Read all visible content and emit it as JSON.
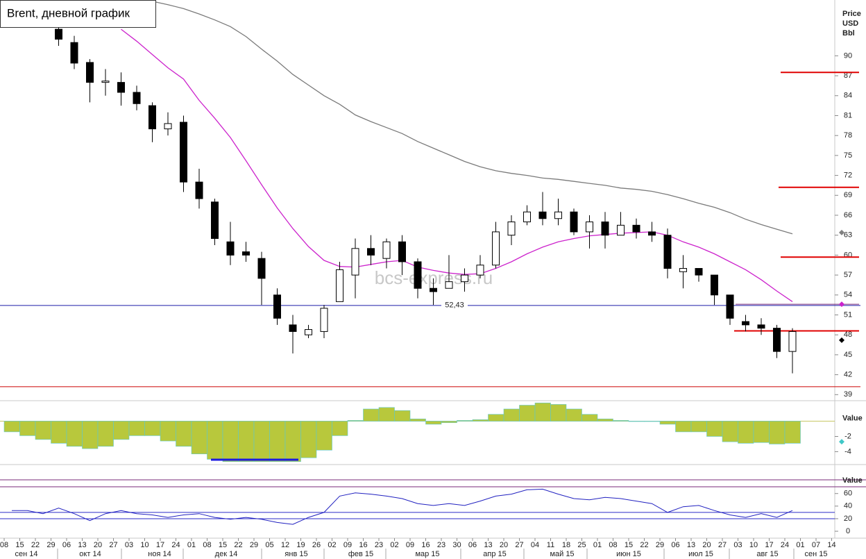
{
  "chart_data": [
    {
      "type": "candlestick",
      "title": "Brent, дневной график",
      "y_label": [
        "Price",
        "USD",
        "Bbl"
      ],
      "watermark": "bcs-express.ru",
      "categories": [
        "08",
        "15",
        "22",
        "29",
        "06",
        "13",
        "20",
        "27",
        "03",
        "10",
        "17",
        "24",
        "01",
        "08",
        "15",
        "22",
        "29",
        "05",
        "12",
        "19",
        "26",
        "02",
        "09",
        "16",
        "23",
        "02",
        "09",
        "16",
        "23",
        "30",
        "06",
        "13",
        "20",
        "27",
        "04",
        "11",
        "18",
        "25",
        "01",
        "08",
        "15",
        "22",
        "29",
        "06",
        "13",
        "20",
        "27",
        "03",
        "10",
        "17",
        "24",
        "01",
        "07",
        "14"
      ],
      "months": [
        "сен 14",
        "окт 14",
        "ноя 14",
        "дек 14",
        "янв 15",
        "фев 15",
        "мар 15",
        "апр 15",
        "май 15",
        "июн 15",
        "июл 15",
        "авг 15",
        "сен 15"
      ],
      "open": [
        null,
        null,
        null,
        94,
        92,
        89,
        86,
        86,
        84.5,
        82.5,
        79,
        80,
        71,
        68,
        62,
        60.5,
        59.5,
        54,
        49.5,
        48,
        48.5,
        53,
        57,
        61,
        59.5,
        62,
        59,
        55,
        55,
        56,
        57,
        58.5,
        63,
        65,
        66.5,
        65.5,
        66.5,
        63.5,
        65,
        63,
        64.5,
        63.5,
        63,
        57.5,
        58,
        57,
        54,
        50,
        49.5,
        49,
        45.5,
        null,
        null,
        null
      ],
      "high": [
        null,
        null,
        null,
        95,
        93,
        89.5,
        88,
        87.5,
        85.5,
        83,
        81.5,
        81,
        73,
        68.5,
        65,
        62,
        60.5,
        55,
        51,
        49.5,
        52.5,
        59,
        62.5,
        63,
        62.5,
        63,
        59.5,
        56.5,
        60,
        58,
        60,
        65,
        66,
        67.5,
        69.5,
        68.5,
        67,
        66,
        66.5,
        66.5,
        65.5,
        65,
        64,
        60,
        58,
        57,
        54,
        51,
        50.5,
        49.5,
        49,
        null,
        null,
        null
      ],
      "low": [
        null,
        null,
        null,
        91.5,
        88,
        83,
        84,
        82.5,
        81.8,
        77,
        78,
        69.5,
        67,
        61.5,
        58.5,
        59,
        52.5,
        49.5,
        45.2,
        47.5,
        47.5,
        53,
        53.5,
        58.5,
        58,
        57,
        53.5,
        52.5,
        55,
        54.5,
        56.5,
        58,
        61.5,
        64.5,
        64.5,
        64.5,
        63,
        61,
        61,
        63,
        62.5,
        62,
        56.5,
        55,
        56,
        52.5,
        49.5,
        48.5,
        48,
        44.5,
        42.2,
        null,
        null,
        null
      ],
      "close": [
        null,
        null,
        null,
        92.5,
        88.9,
        86,
        86.2,
        84.5,
        82.8,
        79,
        79.8,
        71,
        68.5,
        62.5,
        60,
        60,
        56.5,
        50.5,
        48.5,
        48.8,
        52,
        57.8,
        61,
        60,
        62,
        59,
        55,
        54.5,
        56,
        57,
        58.5,
        63.5,
        65,
        66.5,
        65.5,
        66.5,
        63.5,
        65,
        63,
        64.5,
        63.5,
        63,
        58,
        58,
        57,
        54,
        50.5,
        49.5,
        49,
        45.5,
        48.5,
        null,
        null,
        null
      ],
      "up_color": "#ffffff",
      "down_color": "#000000",
      "moving_averages": [
        {
          "color": "#7a7a7a",
          "values": [
            null,
            null,
            null,
            null,
            null,
            null,
            null,
            null,
            null,
            98.2,
            97.7,
            97.1,
            96.3,
            95.4,
            94.4,
            92.9,
            91.0,
            89.2,
            87.2,
            85.6,
            84.0,
            82.7,
            81.1,
            80.1,
            79.2,
            78.3,
            77.1,
            76.1,
            75.1,
            74.1,
            73.3,
            72.7,
            72.3,
            72.0,
            71.6,
            71.4,
            71.1,
            70.8,
            70.5,
            70.1,
            69.9,
            69.6,
            69.1,
            68.5,
            67.8,
            67.2,
            66.4,
            65.4,
            64.6,
            63.9,
            63.2,
            null,
            null,
            null
          ]
        },
        {
          "color": "#cc22cc",
          "values": [
            null,
            null,
            null,
            null,
            null,
            null,
            null,
            94.0,
            92.2,
            90.2,
            88.2,
            86.5,
            83.3,
            80.6,
            77.7,
            74.2,
            70.6,
            67.1,
            64.0,
            61.3,
            59.2,
            58.3,
            58.2,
            58.6,
            59.0,
            59.2,
            58.2,
            57.7,
            57.3,
            57.1,
            57.2,
            58.0,
            59.0,
            60.2,
            61.2,
            62.0,
            62.5,
            62.9,
            63.1,
            63.3,
            63.4,
            63.5,
            63.0,
            62.0,
            61.2,
            60.2,
            59.0,
            57.8,
            56.3,
            54.6,
            53.0,
            null,
            null,
            null
          ]
        }
      ],
      "levels": [
        {
          "value": 52.43,
          "label": "52,43",
          "color": "#1a1aa8"
        },
        {
          "value": 40.2,
          "color": "#cc0000"
        },
        {
          "value": 87.5,
          "color": "#e00000"
        },
        {
          "value": 70.2,
          "color": "#e00000"
        },
        {
          "value": 59.7,
          "color": "#e00000"
        },
        {
          "value": 48.6,
          "color": "#e00000"
        },
        {
          "value": 52.6,
          "color": "#7a2a7a"
        }
      ],
      "markers": [
        {
          "value": 63.4,
          "color": "#808080"
        },
        {
          "value": 52.6,
          "color": "#cc22cc"
        },
        {
          "value": 47.2,
          "color": "#000000"
        }
      ],
      "ylim": [
        38.3,
        98.4
      ],
      "yticks": [
        39,
        42,
        45,
        48,
        51,
        54,
        57,
        60,
        63,
        66,
        69,
        72,
        75,
        78,
        81,
        84,
        87,
        90
      ]
    },
    {
      "type": "bar",
      "y_label": "Value",
      "color": "#b8c83c",
      "edge_color": "#5cc8d0",
      "values": [
        -1.4,
        -1.9,
        -2.4,
        -2.9,
        -3.3,
        -3.6,
        -3.3,
        -2.4,
        -1.9,
        -1.9,
        -2.6,
        -3.3,
        -4.3,
        -5.0,
        -5.3,
        -5.3,
        -5.3,
        -5.3,
        -5.3,
        -4.8,
        -3.8,
        -1.9,
        0.1,
        1.6,
        1.8,
        1.4,
        0.3,
        -0.4,
        -0.2,
        0.1,
        0.2,
        0.9,
        1.6,
        2.1,
        2.4,
        2.2,
        1.6,
        0.9,
        0.3,
        0.1,
        0,
        0,
        -0.4,
        -1.4,
        -1.4,
        -2.0,
        -2.7,
        -2.9,
        -2.8,
        -3.0,
        -2.9,
        null,
        null,
        null
      ],
      "markers": [
        {
          "value": -2.7,
          "color": "#40c8c8"
        }
      ],
      "ylim": [
        -5.6,
        2.6
      ],
      "yticks": [
        -2,
        -4
      ]
    },
    {
      "type": "line",
      "y_label": "Value",
      "color": "#2020c0",
      "values": [
        33,
        33,
        28,
        37,
        28,
        17,
        28,
        33,
        28,
        26,
        22,
        26,
        28,
        22,
        19,
        22,
        19,
        14,
        11,
        22,
        30,
        56,
        61,
        59,
        56,
        52,
        44,
        41,
        44,
        41,
        48,
        56,
        59,
        66,
        67,
        59,
        52,
        50,
        54,
        52,
        48,
        44,
        30,
        39,
        41,
        33,
        26,
        22,
        28,
        22,
        33,
        null,
        null,
        null
      ],
      "levels": [
        30,
        20
      ],
      "ylim": [
        -11,
        105
      ],
      "yticks": [
        60,
        40,
        20,
        0
      ]
    }
  ]
}
